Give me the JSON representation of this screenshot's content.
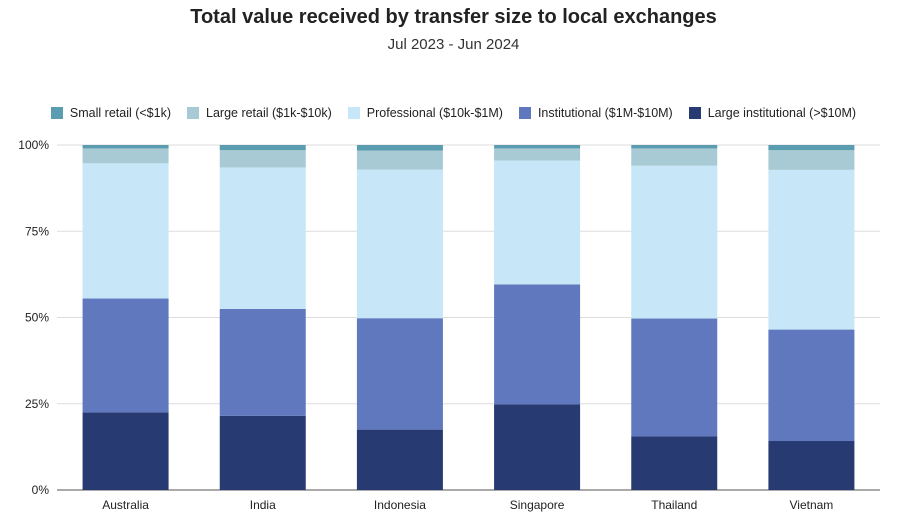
{
  "chart_data": {
    "type": "bar",
    "stacked": true,
    "title": "Total value received by transfer size to local exchanges",
    "subtitle": "Jul 2023 - Jun 2024",
    "categories": [
      "Australia",
      "India",
      "Indonesia",
      "Singapore",
      "Thailand",
      "Vietnam"
    ],
    "series": [
      {
        "name": "Large institutional (>$10M)",
        "color": "#283a72",
        "values": [
          22.5,
          21.5,
          17.5,
          24.8,
          15.5,
          14.2
        ]
      },
      {
        "name": "Institutional ($1M-$10M)",
        "color": "#6078be",
        "values": [
          33.0,
          31.0,
          32.3,
          34.8,
          34.2,
          32.3
        ]
      },
      {
        "name": "Professional ($10k-$1M)",
        "color": "#c7e6f7",
        "values": [
          39.2,
          41.0,
          43.1,
          35.9,
          44.3,
          46.3
        ]
      },
      {
        "name": "Large retail ($1k-$10k)",
        "color": "#a8cad4",
        "values": [
          4.3,
          5.0,
          5.5,
          3.5,
          5.0,
          5.7
        ]
      },
      {
        "name": "Small retail (<$1k)",
        "color": "#5b9db0",
        "values": [
          1.0,
          1.5,
          1.6,
          1.0,
          1.0,
          1.5
        ]
      }
    ],
    "legend_order": [
      4,
      3,
      2,
      1,
      0
    ],
    "ylim": [
      0,
      100
    ],
    "yticks": [
      "0%",
      "25%",
      "50%",
      "75%",
      "100%"
    ],
    "ytick_values": [
      0,
      25,
      50,
      75,
      100
    ],
    "grid": true,
    "legend_position": "top"
  }
}
